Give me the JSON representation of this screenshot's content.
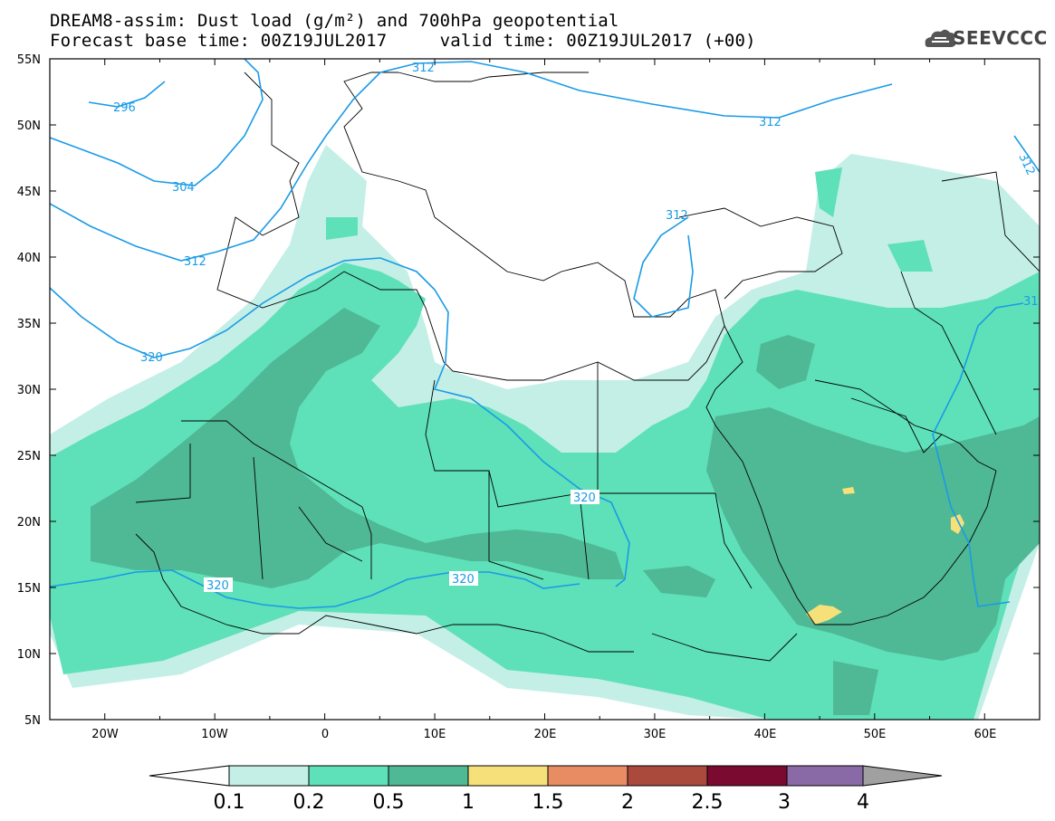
{
  "header": {
    "title_line1": "DREAM8-assim: Dust load (g/m²) and 700hPa geopotential",
    "title_line2": "Forecast base time: 00Z19JUL2017     valid time: 00Z19JUL2017 (+00)",
    "logo_text": "SEEVCCC",
    "logo_icon": "cloud-icon"
  },
  "map": {
    "lon_range": [
      -25,
      65
    ],
    "lat_range": [
      5,
      55
    ],
    "lon_ticks": [
      "20W",
      "10W",
      "0",
      "10E",
      "20E",
      "30E",
      "40E",
      "50E",
      "60E"
    ],
    "lat_ticks": [
      "55N",
      "50N",
      "45N",
      "40N",
      "35N",
      "30N",
      "25N",
      "20N",
      "15N",
      "10N",
      "5N"
    ],
    "contour_labels": [
      {
        "text": "296",
        "lon": -17.5,
        "lat": 51.3
      },
      {
        "text": "304",
        "lon": -11.5,
        "lat": 46.3
      },
      {
        "text": "312",
        "lon": -10.5,
        "lat": 40.2
      },
      {
        "text": "320",
        "lon": -16.5,
        "lat": 35.3
      },
      {
        "text": "312",
        "lon": 7.5,
        "lat": 54.2
      },
      {
        "text": "312",
        "lon": 35.0,
        "lat": 50.3
      },
      {
        "text": "312",
        "lon": 63.5,
        "lat": 47.5
      },
      {
        "text": "312",
        "lon": 30.5,
        "lat": 43.4
      },
      {
        "text": "31",
        "lon": 64.2,
        "lat": 36.8
      },
      {
        "text": "320",
        "lon": 24.0,
        "lat": 21.8
      },
      {
        "text": "320",
        "lon": -10.0,
        "lat": 15.1
      },
      {
        "text": "320",
        "lon": 12.5,
        "lat": 15.6
      }
    ],
    "colors": {
      "level_0_1": "#c3efe6",
      "level_0_2": "#5ee0b8",
      "level_0_5": "#4fb894",
      "level_1": "#f6e07a",
      "contour": "#1a9be6",
      "borders": "#000000"
    }
  },
  "colorbar": {
    "labels": [
      "0.1",
      "0.2",
      "0.5",
      "1",
      "1.5",
      "2",
      "2.5",
      "3",
      "4"
    ],
    "colors": [
      "#c3efe6",
      "#5ee0b8",
      "#4fb894",
      "#f6e07a",
      "#e88c64",
      "#aa4a3c",
      "#7a0a30",
      "#8a6aa6"
    ],
    "under_color": "#ffffff",
    "over_color": "#a0a0a0"
  }
}
